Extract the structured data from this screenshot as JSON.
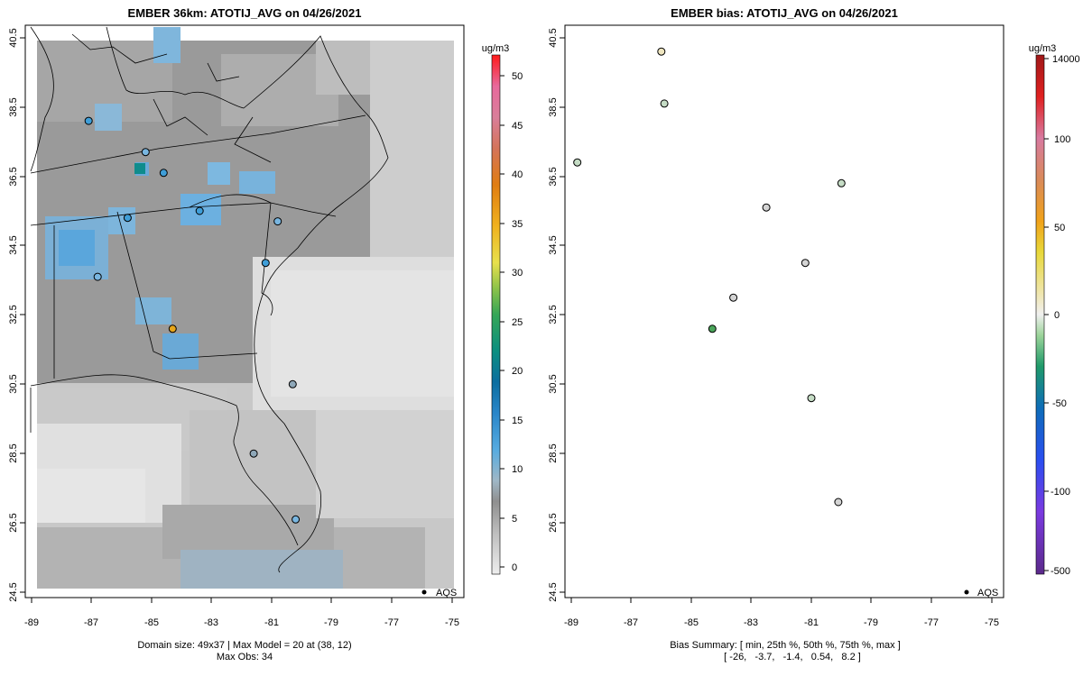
{
  "left_panel": {
    "title": "EMBER 36km: ATOTIJ_AVG on 04/26/2021",
    "footer_line1": "Domain size: 49x37 | Max Model = 20 at (38, 12)",
    "footer_line2": "Max Obs: 34",
    "legend_label": "AQS",
    "colorbar_unit": "ug/m3"
  },
  "right_panel": {
    "title": "EMBER bias: ATOTIJ_AVG on 04/26/2021",
    "footer_line1": "Bias Summary: [ min, 25th %, 50th %, 75th %, max ]",
    "footer_line2": "[ -26,   -3.7,   -1.4,   0.54,   8.2 ]",
    "legend_label": "AQS",
    "colorbar_unit": "ug/m3"
  },
  "chart_data": [
    {
      "type": "heatmap",
      "title": "EMBER 36km: ATOTIJ_AVG on 04/26/2021",
      "xlabel": "",
      "ylabel": "",
      "xlim": [
        -89.2,
        -74.8
      ],
      "ylim": [
        24.4,
        40.6
      ],
      "x_ticks": [
        -89,
        -87,
        -85,
        -83,
        -81,
        -79,
        -77,
        -75
      ],
      "x_tick_labels": [
        "-89",
        "-87",
        "-85",
        "-83",
        "-81",
        "-79",
        "-77",
        "-75"
      ],
      "y_ticks": [
        24.5,
        26.5,
        28.5,
        30.5,
        32.5,
        34.5,
        36.5,
        38.5,
        40.5
      ],
      "y_tick_labels": [
        "24.5",
        "26.5",
        "28.5",
        "30.5",
        "32.5",
        "34.5",
        "36.5",
        "38.5",
        "40.5"
      ],
      "colorbar": {
        "label": "ug/m3",
        "range": [
          -2,
          51
        ],
        "ticks": [
          0,
          5,
          10,
          15,
          20,
          25,
          30,
          35,
          40,
          45,
          50
        ],
        "tick_labels": [
          "0",
          "5",
          "10",
          "15",
          "20",
          "25",
          "30",
          "35",
          "40",
          "45",
          "50"
        ]
      },
      "grid_description": "Gridded model field: mostly grey 2-8 ug/m3 over land, light grey 0-2 over Gulf/Atlantic, blue cells ~10-14 ug/m3 over Alabama, Georgia and the Carolinas; peak 20 at (38,12)",
      "markers": [
        {
          "lon": -84.3,
          "lat": 32.1,
          "value": 34
        },
        {
          "lon": -84.6,
          "lat": 36.6,
          "value": 13
        },
        {
          "lon": -85.8,
          "lat": 35.3,
          "value": 12
        },
        {
          "lon": -86.8,
          "lat": 33.6,
          "value": 11
        },
        {
          "lon": -87.1,
          "lat": 38.1,
          "value": 12
        },
        {
          "lon": -85.2,
          "lat": 37.2,
          "value": 11
        },
        {
          "lon": -81.2,
          "lat": 34.0,
          "value": 12
        },
        {
          "lon": -83.4,
          "lat": 35.5,
          "value": 13
        },
        {
          "lon": -80.8,
          "lat": 35.2,
          "value": 11
        },
        {
          "lon": -80.3,
          "lat": 30.5,
          "value": 7
        },
        {
          "lon": -81.6,
          "lat": 28.5,
          "value": 7
        },
        {
          "lon": -80.2,
          "lat": 26.6,
          "value": 10
        }
      ],
      "legend": {
        "label": "AQS",
        "placement": "bottom-right"
      },
      "footer": [
        "Domain size: 49x37 | Max Model = 20 at (38, 12)",
        "Max Obs: 34"
      ]
    },
    {
      "type": "scatter",
      "title": "EMBER bias: ATOTIJ_AVG on 04/26/2021",
      "xlabel": "",
      "ylabel": "",
      "xlim": [
        -89.2,
        -74.8
      ],
      "ylim": [
        24.4,
        40.6
      ],
      "x_ticks": [
        -89,
        -87,
        -85,
        -83,
        -81,
        -79,
        -77,
        -75
      ],
      "x_tick_labels": [
        "-89",
        "-87",
        "-85",
        "-83",
        "-81",
        "-79",
        "-77",
        "-75"
      ],
      "y_ticks": [
        24.5,
        26.5,
        28.5,
        30.5,
        32.5,
        34.5,
        36.5,
        38.5,
        40.5
      ],
      "y_tick_labels": [
        "24.5",
        "26.5",
        "28.5",
        "30.5",
        "32.5",
        "34.5",
        "36.5",
        "38.5",
        "40.5"
      ],
      "colorbar": {
        "label": "ug/m3",
        "tick_labels": [
          "14000",
          "100",
          "50",
          "0",
          "-50",
          "-100",
          "-500"
        ]
      },
      "markers": [
        {
          "lon": -84.3,
          "lat": 32.1,
          "value": -26
        },
        {
          "lon": -86.0,
          "lat": 40.1,
          "value": 8.2
        },
        {
          "lon": -80.0,
          "lat": 36.3,
          "value": -6
        },
        {
          "lon": -88.8,
          "lat": 36.9,
          "value": -5
        },
        {
          "lon": -85.9,
          "lat": 38.6,
          "value": -4
        },
        {
          "lon": -81.0,
          "lat": 30.1,
          "value": -5
        },
        {
          "lon": -80.1,
          "lat": 27.1,
          "value": -3
        },
        {
          "lon": -83.6,
          "lat": 33.0,
          "value": -2
        },
        {
          "lon": -82.5,
          "lat": 35.6,
          "value": -1.4
        },
        {
          "lon": -81.2,
          "lat": 34.0,
          "value": 0.5
        }
      ],
      "bias_summary": {
        "min": -26,
        "p25": -3.7,
        "p50": -1.4,
        "p75": 0.54,
        "max": 8.2
      },
      "legend": {
        "label": "AQS",
        "placement": "bottom-right"
      },
      "footer": [
        "Bias Summary: [ min, 25th %, 50th %, 75th %, max ]",
        "[ -26,   -3.7,   -1.4,   0.54,   8.2 ]"
      ]
    }
  ]
}
